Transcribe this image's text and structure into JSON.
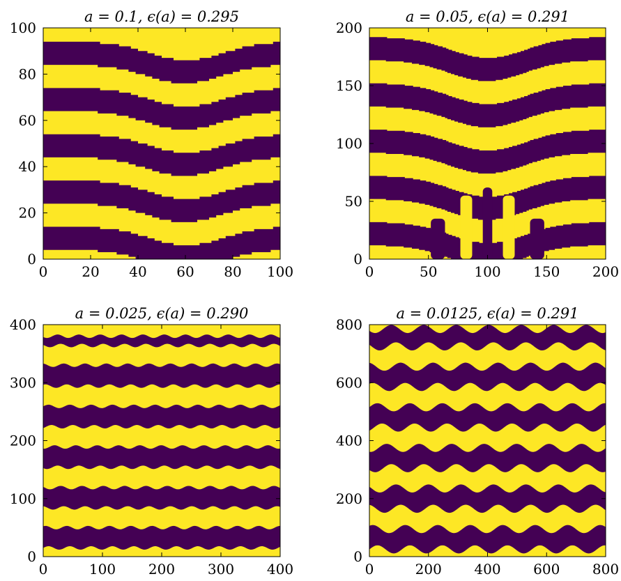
{
  "colors": {
    "low": "#440154",
    "high": "#fde725",
    "frame": "#000000"
  },
  "chart_data": [
    {
      "type": "heatmap",
      "title": "a = 0.1,  ϵ(a) = 0.295",
      "xlim": [
        0,
        100
      ],
      "ylim": [
        0,
        100
      ],
      "xticks": [
        "0",
        "20",
        "40",
        "60",
        "80",
        "100"
      ],
      "yticks": [
        "0",
        "20",
        "40",
        "60",
        "80",
        "100"
      ],
      "xlabel": "",
      "ylabel": "",
      "pattern": {
        "style": "chevron",
        "boundaries": [
          4,
          14,
          24,
          34,
          44,
          54,
          64,
          74,
          84,
          94
        ],
        "bend_center": 60,
        "bend_depth": 8,
        "bend_width": 22,
        "pixelated": true
      }
    },
    {
      "type": "heatmap",
      "title": "a = 0.05,  ϵ(a) = 0.291",
      "xlim": [
        0,
        200
      ],
      "ylim": [
        0,
        200
      ],
      "xticks": [
        "0",
        "50",
        "100",
        "150",
        "200"
      ],
      "yticks": [
        "0",
        "50",
        "100",
        "150",
        "200"
      ],
      "xlabel": "",
      "ylabel": "",
      "pattern": {
        "style": "chevron-with-defects",
        "boundaries": [
          12,
          32,
          52,
          72,
          92,
          112,
          132,
          152,
          172,
          192
        ],
        "bend_center": 100,
        "bend_depth": 18,
        "bend_width": 45,
        "pixelated": true
      }
    },
    {
      "type": "heatmap",
      "title": "a = 0.025,  ϵ(a) = 0.290",
      "xlim": [
        0,
        400
      ],
      "ylim": [
        0,
        400
      ],
      "xticks": [
        "0",
        "100",
        "200",
        "300",
        "400"
      ],
      "yticks": [
        "0",
        "100",
        "200",
        "300",
        "400"
      ],
      "xlabel": "",
      "ylabel": "",
      "pattern": {
        "style": "wavy",
        "boundaries": [
          15,
          50,
          84,
          119,
          154,
          189,
          224,
          259,
          294,
          330,
          364,
          380
        ],
        "wave_amplitude": 3,
        "wave_period": 36,
        "pixelated": false
      }
    },
    {
      "type": "heatmap",
      "title": "a = 0.0125,  ϵ(a) = 0.291",
      "xlim": [
        0,
        800
      ],
      "ylim": [
        0,
        800
      ],
      "xticks": [
        "0",
        "200",
        "400",
        "600",
        "800"
      ],
      "yticks": [
        "0",
        "200",
        "400",
        "600",
        "800"
      ],
      "xlabel": "",
      "ylabel": "",
      "pattern": {
        "style": "wavy",
        "boundaries": [
          25,
          95,
          165,
          235,
          305,
          375,
          445,
          515,
          585,
          655,
          725,
          785
        ],
        "wave_amplitude": 14,
        "wave_period": 110,
        "pixelated": false
      }
    }
  ]
}
